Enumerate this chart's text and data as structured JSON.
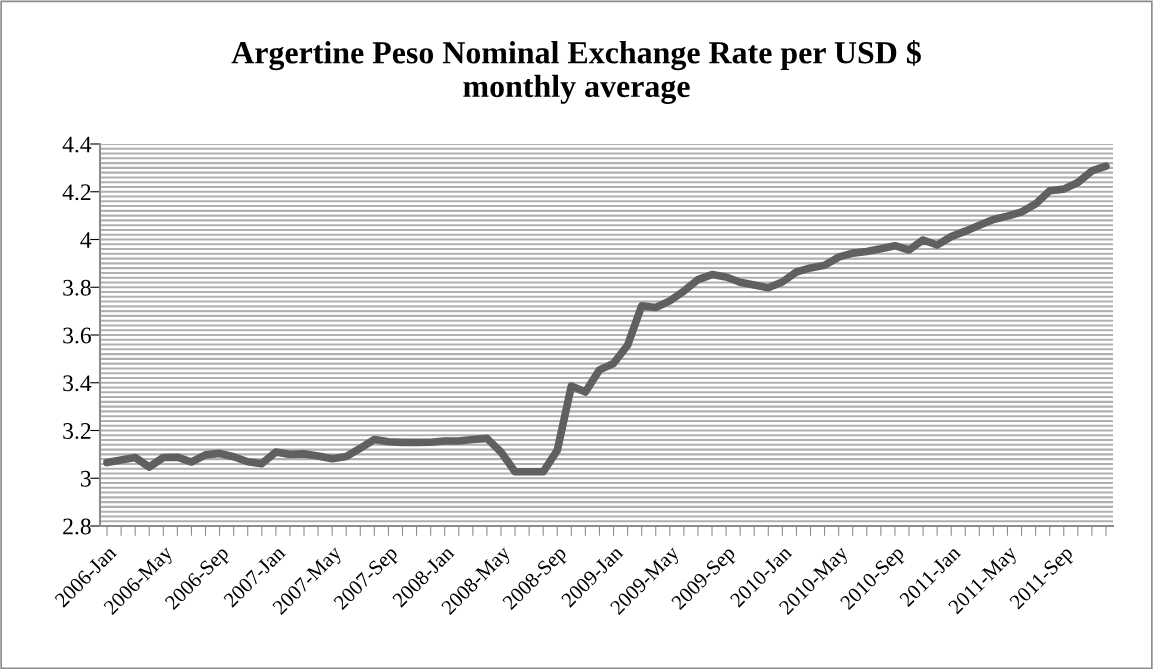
{
  "chart_data": {
    "type": "line",
    "title": "Argertine Peso Nominal Exchange Rate per USD $\nmonthly average",
    "categories": [
      "2006-Jan",
      null,
      null,
      null,
      "2006-May",
      null,
      null,
      null,
      "2006-Sep",
      null,
      null,
      null,
      "2007-Jan",
      null,
      null,
      null,
      "2007-May",
      null,
      null,
      null,
      "2007-Sep",
      null,
      null,
      null,
      "2008-Jan",
      null,
      null,
      null,
      "2008-May",
      null,
      null,
      null,
      "2008-Sep",
      null,
      null,
      null,
      "2009-Jan",
      null,
      null,
      null,
      "2009-May",
      null,
      null,
      null,
      "2009-Sep",
      null,
      null,
      null,
      "2010-Jan",
      null,
      null,
      null,
      "2010-May",
      null,
      null,
      null,
      "2010-Sep",
      null,
      null,
      null,
      "2011-Jan",
      null,
      null,
      null,
      "2011-May",
      null,
      null,
      null,
      "2011-Sep",
      null,
      null,
      null
    ],
    "series": [
      {
        "color": "#606060",
        "values": [
          3.066,
          3.076,
          3.087,
          3.047,
          3.087,
          3.088,
          3.068,
          3.098,
          3.104,
          3.09,
          3.069,
          3.061,
          3.11,
          3.1,
          3.102,
          3.093,
          3.082,
          3.091,
          3.126,
          3.162,
          3.153,
          3.15,
          3.15,
          3.151,
          3.156,
          3.156,
          3.162,
          3.167,
          3.11,
          3.027,
          3.027,
          3.027,
          3.117,
          3.386,
          3.361,
          3.454,
          3.481,
          3.557,
          3.722,
          3.715,
          3.743,
          3.784,
          3.832,
          3.853,
          3.843,
          3.821,
          3.809,
          3.798,
          3.822,
          3.864,
          3.881,
          3.892,
          3.926,
          3.943,
          3.95,
          3.961,
          3.974,
          3.956,
          3.998,
          3.977,
          4.012,
          4.035,
          4.06,
          4.084,
          4.098,
          4.115,
          4.149,
          4.204,
          4.211,
          4.239,
          4.287,
          4.307
        ]
      }
    ],
    "ylim": [
      2.8,
      4.4
    ],
    "yticks": [
      2.8,
      {
        "value": 2.82,
        "label": null
      },
      {
        "value": 2.84,
        "label": null
      },
      {
        "value": 2.86,
        "label": null
      },
      {
        "value": 2.88,
        "label": null
      },
      {
        "value": 2.9,
        "label": null
      },
      {
        "value": 2.92,
        "label": null
      },
      {
        "value": 2.94,
        "label": null
      },
      {
        "value": 2.96,
        "label": null
      },
      {
        "value": 2.98,
        "label": null
      },
      3,
      {
        "value": 3.02,
        "label": null
      },
      {
        "value": 3.04,
        "label": null
      },
      {
        "value": 3.06,
        "label": null
      },
      {
        "value": 3.08,
        "label": null
      },
      {
        "value": 3.1,
        "label": null
      },
      {
        "value": 3.12,
        "label": null
      },
      {
        "value": 3.14,
        "label": null
      },
      {
        "value": 3.16,
        "label": null
      },
      {
        "value": 3.18,
        "label": null
      },
      3.2,
      {
        "value": 3.22,
        "label": null
      },
      {
        "value": 3.24,
        "label": null
      },
      {
        "value": 3.26,
        "label": null
      },
      {
        "value": 3.28,
        "label": null
      },
      {
        "value": 3.3,
        "label": null
      },
      {
        "value": 3.32,
        "label": null
      },
      {
        "value": 3.34,
        "label": null
      },
      {
        "value": 3.36,
        "label": null
      },
      {
        "value": 3.38,
        "label": null
      },
      3.4,
      {
        "value": 3.42,
        "label": null
      },
      {
        "value": 3.44,
        "label": null
      },
      {
        "value": 3.46,
        "label": null
      },
      {
        "value": 3.48,
        "label": null
      },
      {
        "value": 3.5,
        "label": null
      },
      {
        "value": 3.52,
        "label": null
      },
      {
        "value": 3.54,
        "label": null
      },
      {
        "value": 3.56,
        "label": null
      },
      {
        "value": 3.58,
        "label": null
      },
      3.6,
      {
        "value": 3.62,
        "label": null
      },
      {
        "value": 3.64,
        "label": null
      },
      {
        "value": 3.66,
        "label": null
      },
      {
        "value": 3.68,
        "label": null
      },
      {
        "value": 3.7,
        "label": null
      },
      {
        "value": 3.72,
        "label": null
      },
      {
        "value": 3.74,
        "label": null
      },
      {
        "value": 3.76,
        "label": null
      },
      {
        "value": 3.78,
        "label": null
      },
      3.8,
      {
        "value": 3.82,
        "label": null
      },
      {
        "value": 3.84,
        "label": null
      },
      {
        "value": 3.86,
        "label": null
      },
      {
        "value": 3.88,
        "label": null
      },
      {
        "value": 3.9,
        "label": null
      },
      {
        "value": 3.92,
        "label": null
      },
      {
        "value": 3.94,
        "label": null
      },
      {
        "value": 3.96,
        "label": null
      },
      {
        "value": 3.98,
        "label": null
      },
      4,
      {
        "value": 4.02,
        "label": null
      },
      {
        "value": 4.04,
        "label": null
      },
      {
        "value": 4.06,
        "label": null
      },
      {
        "value": 4.08,
        "label": null
      },
      {
        "value": 4.1,
        "label": null
      },
      {
        "value": 4.12,
        "label": null
      },
      {
        "value": 4.14,
        "label": null
      },
      {
        "value": 4.16,
        "label": null
      },
      {
        "value": 4.18,
        "label": null
      },
      4.2,
      {
        "value": 4.22,
        "label": null
      },
      {
        "value": 4.24,
        "label": null
      },
      {
        "value": 4.26,
        "label": null
      },
      {
        "value": 4.28,
        "label": null
      },
      {
        "value": 4.3,
        "label": null
      },
      {
        "value": 4.32,
        "label": null
      },
      {
        "value": 4.34,
        "label": null
      },
      {
        "value": 4.36,
        "label": null
      },
      {
        "value": 4.38,
        "label": null
      },
      4.4
    ],
    "grid": "y",
    "marker": "none",
    "line_style": "solid"
  }
}
